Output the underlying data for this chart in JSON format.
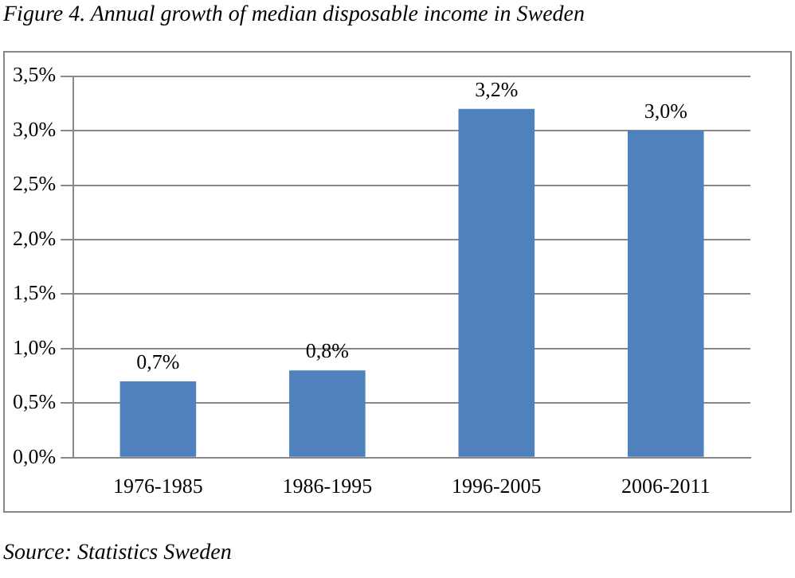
{
  "chart_data": {
    "type": "bar",
    "title": "Figure 4. Annual growth of median disposable income in Sweden",
    "categories": [
      "1976-1985",
      "1986-1995",
      "1996-2005",
      "2006-2011"
    ],
    "values": [
      0.7,
      0.8,
      3.2,
      3.0
    ],
    "value_labels": [
      "0,7%",
      "0,8%",
      "3,2%",
      "3,0%"
    ],
    "color": "#4f81bd",
    "ylim": [
      0,
      3.5
    ],
    "yticks": [
      {
        "value": 0,
        "label": "0,0%"
      },
      {
        "value": 0.5,
        "label": "0,5%"
      },
      {
        "value": 1,
        "label": "1,0%"
      },
      {
        "value": 1.5,
        "label": "1,5%"
      },
      {
        "value": 2,
        "label": "2,0%"
      },
      {
        "value": 2.5,
        "label": "2,5%"
      },
      {
        "value": 3,
        "label": "3,0%"
      },
      {
        "value": 3.5,
        "label": "3,5%"
      }
    ],
    "grid": "y",
    "annotations": [
      "Source: Statistics Sweden"
    ]
  }
}
